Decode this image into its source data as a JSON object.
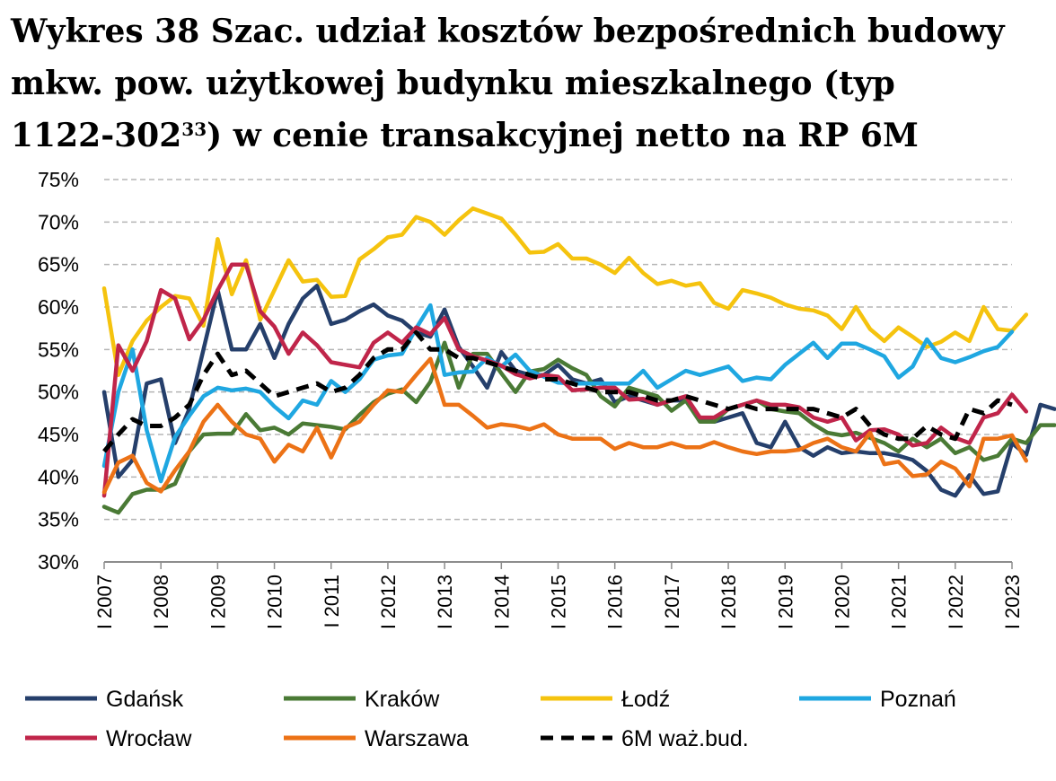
{
  "title": {
    "line1": "Wykres 38 Szac. udział kosztów bezpośrednich budowy",
    "line2": "mkw. pow. użytkowej budynku mieszkalnego (typ",
    "line3_pre": "1122-302",
    "line3_sup": "33",
    "line3_post": ") w cenie transakcyjnej netto na RP 6M"
  },
  "chart_data": {
    "type": "line",
    "title": "Wykres 38 Szac. udział kosztów bezpośrednich budowy mkw. pow. użytkowej budynku mieszkalnego (typ 1122-302) w cenie transakcyjnej netto na RP 6M",
    "xlabel": "",
    "ylabel": "",
    "ylim": [
      30,
      75
    ],
    "y_ticks": [
      30,
      35,
      40,
      45,
      50,
      55,
      60,
      65,
      70,
      75
    ],
    "y_tick_labels": [
      "30%",
      "35%",
      "40%",
      "45%",
      "50%",
      "55%",
      "60%",
      "65%",
      "70%",
      "75%"
    ],
    "x_tick_labels": [
      "I 2007",
      "I 2008",
      "I 2009",
      "I 2010",
      "I 2011",
      "I 2012",
      "I 2013",
      "I 2014",
      "I 2015",
      "I 2016",
      "I 2017",
      "I 2018",
      "I 2019",
      "I 2020",
      "I 2021",
      "I 2022",
      "I 2023"
    ],
    "periods_per_year": 4,
    "grid": "horizontal-dashed",
    "legend_position": "bottom",
    "series": [
      {
        "name": "Gdańsk",
        "color": "#253f6b",
        "dash": false,
        "values": [
          50,
          40,
          42,
          51,
          51.5,
          44,
          48,
          55,
          62,
          55,
          55,
          58,
          54,
          58,
          61,
          62.5,
          58,
          58.5,
          59.5,
          60.3,
          59,
          58.4,
          57,
          56.5,
          59.7,
          55.3,
          53,
          50.5,
          54.7,
          52.5,
          52,
          52,
          53.2,
          51.5,
          51,
          51.5,
          48.8,
          49.5,
          49,
          48.5,
          49,
          49,
          47,
          46.5,
          47,
          47.5,
          44,
          43.5,
          46.5,
          43.5,
          42.5,
          43.5,
          42.8,
          43,
          42.8,
          42.8,
          42.5,
          42,
          40.7,
          38.5,
          37.8,
          40.2,
          38,
          38.3,
          44,
          42.6,
          48.5,
          48
        ]
      },
      {
        "name": "Kraków",
        "color": "#4a7a35",
        "dash": false,
        "values": [
          36.5,
          35.8,
          38,
          38.5,
          38.5,
          39.2,
          43,
          45,
          45.1,
          45.1,
          47.4,
          45.5,
          45.8,
          45,
          46.3,
          46.1,
          45.9,
          45.6,
          47.3,
          48.8,
          49.8,
          50.3,
          48.8,
          51.2,
          55.8,
          50.5,
          54.5,
          54.5,
          52.2,
          50,
          52.4,
          52.7,
          53.8,
          52.8,
          52,
          49.5,
          48.3,
          50.5,
          50,
          49.5,
          47.8,
          49,
          46.5,
          46.5,
          48,
          48.5,
          49,
          48,
          47.7,
          47.5,
          46.2,
          45.2,
          44.9,
          45.2,
          44.6,
          44,
          43,
          44.5,
          43.5,
          44.5,
          42.8,
          43.5,
          42,
          42.5,
          44.5,
          44,
          46.1,
          46.1
        ]
      },
      {
        "name": "Łodź",
        "color": "#f5c30e",
        "dash": false,
        "values": [
          62.2,
          52,
          56,
          58.4,
          60,
          61.3,
          61,
          57.8,
          68,
          61.5,
          65.5,
          58.5,
          62,
          65.5,
          63,
          63.2,
          61.2,
          61.3,
          65.6,
          66.8,
          68.2,
          68.5,
          70.6,
          70,
          68.5,
          70.2,
          71.6,
          71,
          70.4,
          68.5,
          66.4,
          66.5,
          67.4,
          65.7,
          65.7,
          65,
          64,
          65.8,
          64,
          62.7,
          63.1,
          62.5,
          62.8,
          60.5,
          59.8,
          62,
          61.6,
          61.1,
          60.3,
          59.8,
          59.6,
          59,
          57.4,
          60,
          57.4,
          56,
          57.6,
          56.5,
          55.3,
          55.9,
          57,
          56,
          60,
          57.4,
          57.2,
          59.1
        ]
      },
      {
        "name": "Poznań",
        "color": "#1fa7e1",
        "dash": false,
        "values": [
          41.3,
          50,
          55,
          45.5,
          39.5,
          44.7,
          47.2,
          49.5,
          50.5,
          50.2,
          50.4,
          50,
          48.3,
          46.9,
          49,
          48.5,
          51.3,
          50,
          51.5,
          53.8,
          54.3,
          54.5,
          57.5,
          60.2,
          52,
          52.3,
          52.4,
          54,
          53,
          54.4,
          52.5,
          51.8,
          51.1,
          51,
          51,
          51,
          51,
          51,
          52.5,
          50.5,
          51.5,
          52.5,
          52,
          52.5,
          53,
          51.3,
          51.7,
          51.5,
          53.2,
          54.5,
          55.8,
          54,
          55.7,
          55.7,
          55,
          54.2,
          51.7,
          53,
          56.2,
          54,
          53.5,
          54.1,
          54.8,
          55.3,
          57.1
        ]
      },
      {
        "name": "Wrocław",
        "color": "#c0254a",
        "dash": false,
        "values": [
          37.8,
          55.5,
          52.5,
          56,
          62,
          61,
          56.2,
          58.5,
          62,
          65,
          65,
          59.5,
          57.7,
          54.5,
          57,
          55.5,
          53.5,
          53.2,
          52.9,
          55.8,
          57,
          55.8,
          57.6,
          56.8,
          58.7,
          55,
          54.2,
          53.7,
          53.1,
          52.1,
          51.6,
          52,
          51.8,
          50.2,
          50.3,
          50.5,
          50.5,
          49.1,
          49.2,
          48.5,
          49,
          49.5,
          47,
          47,
          48,
          48.5,
          49,
          48.5,
          48.5,
          48.2,
          47,
          46.5,
          47,
          44.3,
          45.5,
          45.6,
          45,
          43.7,
          44,
          45.8,
          44.6,
          44,
          47,
          47.5,
          49.7,
          47.7
        ]
      },
      {
        "name": "Warszawa",
        "color": "#ec7216",
        "dash": false,
        "values": [
          38.2,
          41.7,
          42.5,
          39.3,
          38.3,
          40.8,
          43,
          46.5,
          48.5,
          46.5,
          45,
          44.5,
          41.8,
          43.8,
          43,
          45.8,
          42.3,
          45.8,
          46.5,
          48.5,
          50.2,
          50,
          52,
          53.9,
          48.5,
          48.5,
          47.2,
          45.8,
          46.2,
          46,
          45.6,
          46.2,
          45,
          44.5,
          44.5,
          44.5,
          43.3,
          44,
          43.5,
          43.5,
          44,
          43.5,
          43.5,
          44.1,
          43.5,
          43,
          42.7,
          43,
          43,
          43.2,
          44,
          44.5,
          43.5,
          43,
          45.2,
          41.5,
          41.8,
          40.1,
          40.3,
          41.8,
          41,
          38.9,
          44.5,
          44.5,
          44.9,
          41.9
        ]
      },
      {
        "name": "6M waż.bud.",
        "color": "#000000",
        "dash": true,
        "values": [
          43,
          45,
          46.8,
          46,
          46,
          47,
          48.5,
          52,
          54.5,
          52,
          52.5,
          51,
          49.5,
          50,
          50.5,
          51,
          50,
          50.5,
          52,
          54,
          55,
          55,
          57,
          55,
          55,
          54,
          54,
          53.5,
          53,
          52.5,
          52,
          51.5,
          51.5,
          51,
          50.5,
          50,
          50,
          50,
          49.5,
          49,
          49,
          49.5,
          49,
          48.5,
          48,
          48.5,
          48,
          48,
          48,
          48,
          48,
          47.5,
          47,
          48,
          46,
          45,
          44.5,
          44.5,
          46,
          45,
          44.5,
          48,
          47.5,
          49,
          48.5
        ]
      }
    ]
  }
}
